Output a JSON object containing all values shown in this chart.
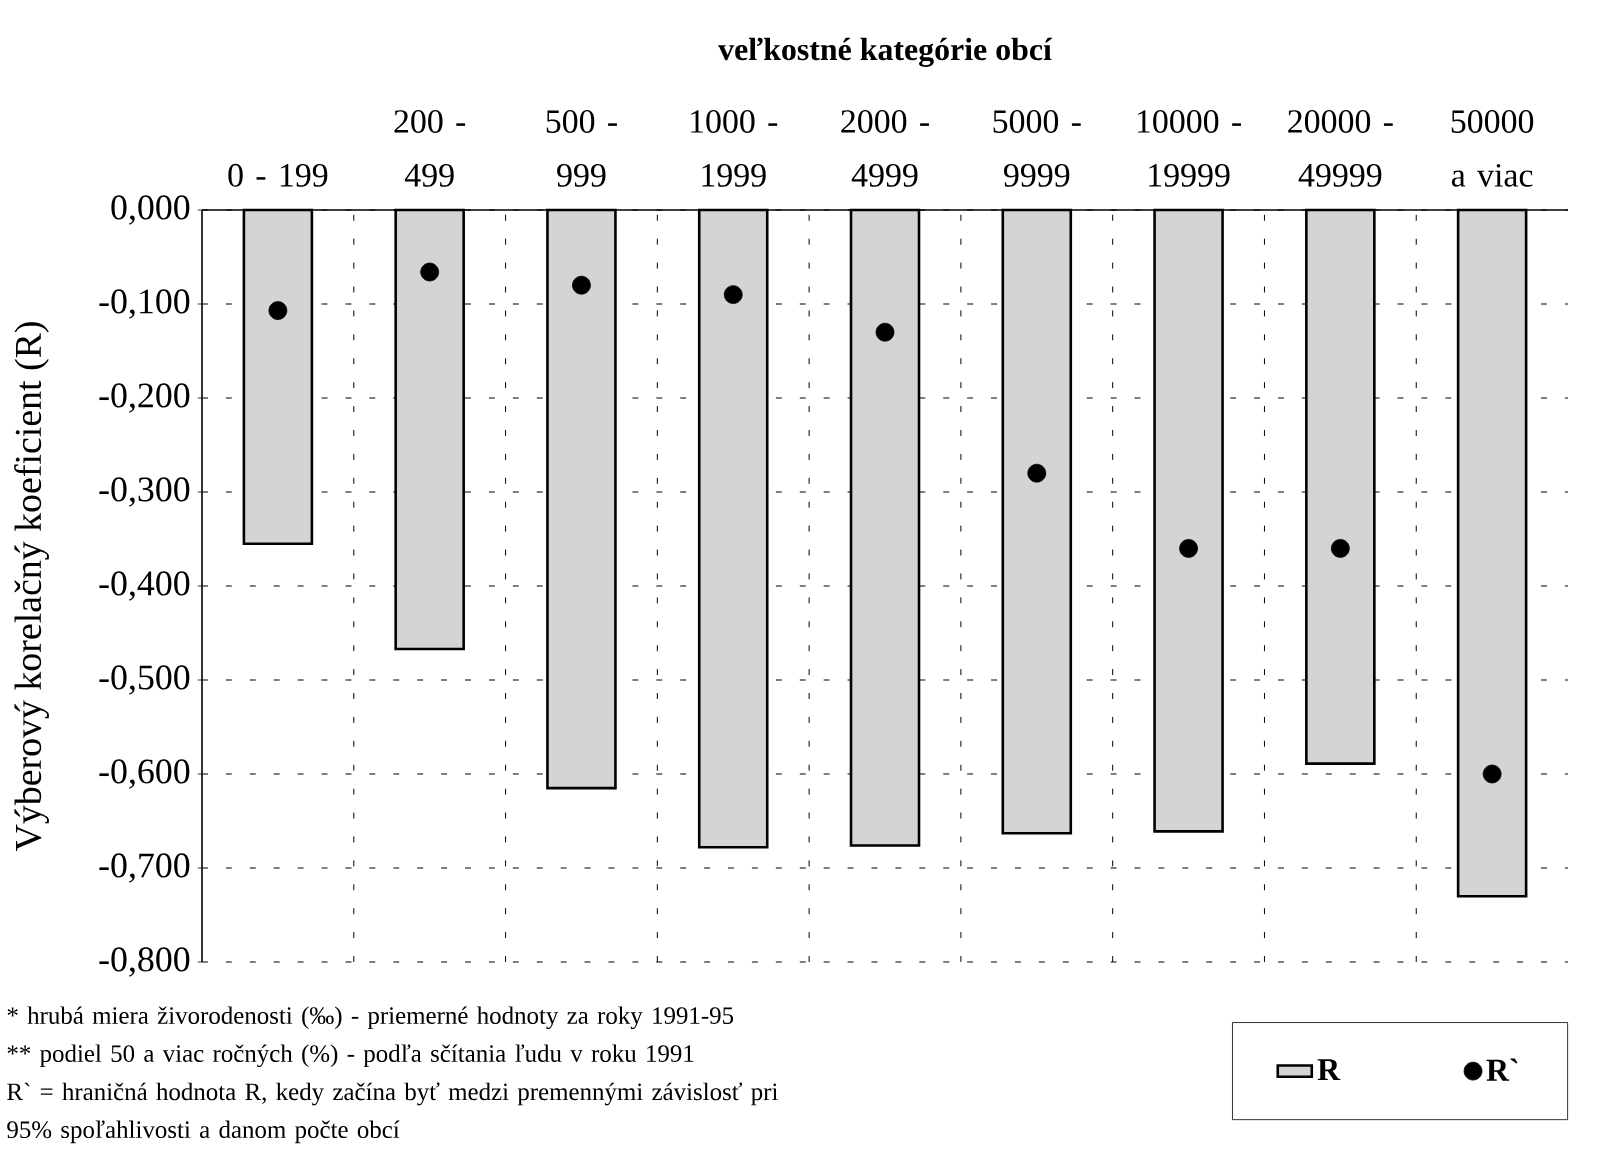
{
  "chart_data": {
    "type": "bar",
    "xlabel": "veľkostné kategórie obcí",
    "ylabel": "Výberový korelačný koeficient (R)",
    "categories": [
      "0 - 199",
      "200 - 499",
      "500 - 999",
      "1000 - 1999",
      "2000 - 4999",
      "5000 - 9999",
      "10000 - 19999",
      "20000 - 49999",
      "50000 a viac"
    ],
    "series": [
      {
        "name": "R",
        "type": "bar",
        "color": "#d4d4d4",
        "values": [
          -0.355,
          -0.467,
          -0.615,
          -0.678,
          -0.676,
          -0.663,
          -0.661,
          -0.589,
          -0.73
        ]
      },
      {
        "name": "R`",
        "type": "scatter",
        "color": "#000000",
        "values": [
          -0.107,
          -0.066,
          -0.08,
          -0.09,
          -0.13,
          -0.28,
          -0.36,
          -0.36,
          -0.6
        ]
      }
    ],
    "ylim": [
      -0.8,
      0
    ],
    "yticks": [
      {
        "value": 0,
        "label": "0,000"
      },
      {
        "value": -0.1,
        "label": "-0,100"
      },
      {
        "value": -0.2,
        "label": "-0,200"
      },
      {
        "value": -0.3,
        "label": "-0,300"
      },
      {
        "value": -0.4,
        "label": "-0,400"
      },
      {
        "value": -0.5,
        "label": "-0,500"
      },
      {
        "value": -0.6,
        "label": "-0,600"
      },
      {
        "value": -0.7,
        "label": "-0,700"
      },
      {
        "value": -0.8,
        "label": "-0,800"
      }
    ],
    "grid": true,
    "marker": "circle",
    "legend": "bottom right",
    "annotations": [
      "* hrubá miera živorodenosti (‰) - priemerné hodnoty za roky 1991-95",
      "** podiel 50 a viac ročných (%) - podľa sčítania ľudu v roku 1991",
      "R` = hraničná hodnota R, kedy začína byť medzi premennými závislosť pri 95% spoľahlivosti a danom počte obcí"
    ]
  }
}
